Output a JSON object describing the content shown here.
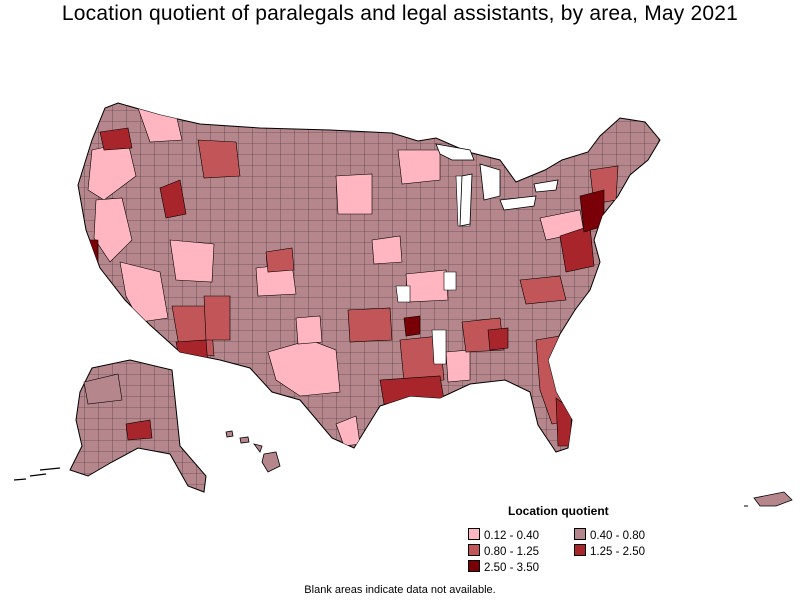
{
  "title": "Location quotient of paralegals and legal assistants, by area, May 2021",
  "legend": {
    "title": "Location quotient",
    "items": [
      {
        "label": "0.12 - 0.40",
        "color": "#ffb6c1"
      },
      {
        "label": "0.40 - 0.80",
        "color": "#b5878c"
      },
      {
        "label": "0.80 - 1.25",
        "color": "#c25558"
      },
      {
        "label": "1.25 - 2.50",
        "color": "#a8252b"
      },
      {
        "label": "2.50 - 3.50",
        "color": "#7a0008"
      }
    ]
  },
  "footnote": "Blank areas indicate data not available.",
  "colors": {
    "low": "#ffb6c1",
    "mid": "#b5878c",
    "high": "#c25558",
    "higher": "#a8252b",
    "highest": "#7a0008",
    "border": "#000000"
  }
}
